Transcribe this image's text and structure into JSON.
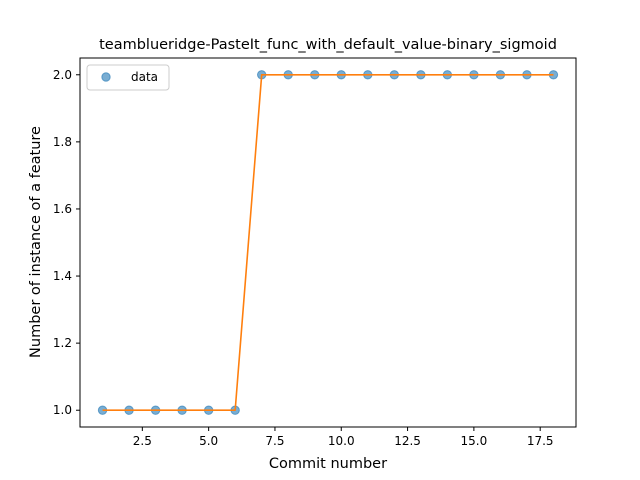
{
  "chart_data": {
    "type": "line",
    "title": "teamblueridge-PasteIt_func_with_default_value-binary_sigmoid",
    "xlabel": "Commit number",
    "ylabel": "Number of instance of a feature",
    "xlim": [
      0.15,
      18.85
    ],
    "ylim": [
      0.95,
      2.05
    ],
    "xticks": [
      2.5,
      5.0,
      7.5,
      10.0,
      12.5,
      15.0,
      17.5
    ],
    "xtick_labels": [
      "2.5",
      "5.0",
      "7.5",
      "10.0",
      "12.5",
      "15.0",
      "17.5"
    ],
    "yticks": [
      1.0,
      1.2,
      1.4,
      1.6,
      1.8,
      2.0
    ],
    "ytick_labels": [
      "1.0",
      "1.2",
      "1.4",
      "1.6",
      "1.8",
      "2.0"
    ],
    "grid": false,
    "legend": {
      "placement": "top-left",
      "entries": [
        "data"
      ]
    },
    "series": [
      {
        "name": "data",
        "kind": "scatter",
        "color": "#1f77b4",
        "x": [
          1,
          2,
          3,
          4,
          5,
          6,
          7,
          8,
          9,
          10,
          11,
          12,
          13,
          14,
          15,
          16,
          17,
          18
        ],
        "y": [
          1,
          1,
          1,
          1,
          1,
          1,
          2,
          2,
          2,
          2,
          2,
          2,
          2,
          2,
          2,
          2,
          2,
          2
        ]
      },
      {
        "kind": "line",
        "color": "#ff7f0e",
        "x": [
          1,
          2,
          3,
          4,
          5,
          6,
          7,
          8,
          9,
          10,
          11,
          12,
          13,
          14,
          15,
          16,
          17,
          18
        ],
        "y": [
          1,
          1,
          1,
          1,
          1,
          1,
          2,
          2,
          2,
          2,
          2,
          2,
          2,
          2,
          2,
          2,
          2,
          2
        ]
      }
    ]
  }
}
